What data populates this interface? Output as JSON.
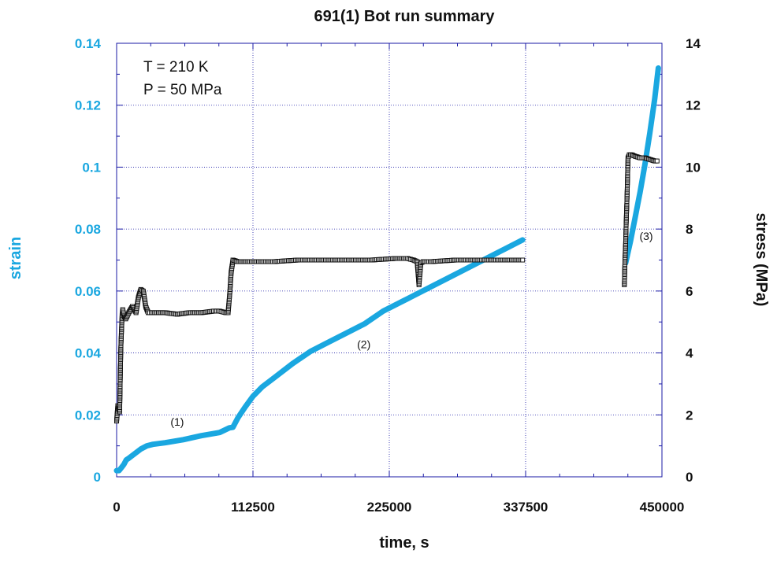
{
  "chart_data": {
    "type": "line",
    "title": "691(1) Bot run summary",
    "xlabel": "time, s",
    "ylabel_left": "strain",
    "ylabel_right": "stress (MPa)",
    "xlim": [
      0,
      450000
    ],
    "ylim_left": [
      0,
      0.14
    ],
    "ylim_right": [
      0,
      14
    ],
    "x_ticks": [
      0,
      112500,
      225000,
      337500,
      450000
    ],
    "x_tick_labels": [
      "0",
      "112500",
      "225000",
      "337500",
      "450000"
    ],
    "y_left_ticks": [
      0,
      0.02,
      0.04,
      0.06,
      0.08,
      0.1,
      0.12,
      0.14
    ],
    "y_left_tick_labels": [
      "0",
      "0.02",
      "0.04",
      "0.06",
      "0.08",
      "0.1",
      "0.12",
      "0.14"
    ],
    "y_right_ticks": [
      0,
      2,
      4,
      6,
      8,
      10,
      12,
      14
    ],
    "y_right_tick_labels": [
      "0",
      "2",
      "4",
      "6",
      "8",
      "10",
      "12",
      "14"
    ],
    "grid": true,
    "annotations": [
      "T = 210 K",
      "P = 50 MPa"
    ],
    "segment_labels": [
      {
        "text": "(1)",
        "x": 50000,
        "y_strain": 0.0165
      },
      {
        "text": "(2)",
        "x": 204000,
        "y_strain": 0.0415
      },
      {
        "text": "(3)",
        "x": 437000,
        "y_strain": 0.0765
      }
    ],
    "colors": {
      "strain": "#1aa7e0",
      "stress": "#111111",
      "grid": "#1a1aa6",
      "axis": "#1a1aa6"
    },
    "series": [
      {
        "name": "strain",
        "axis": "left",
        "color": "#1aa7e0",
        "segments": [
          {
            "x": [
              0,
              2000,
              4000,
              6000,
              8000,
              10000,
              15000,
              20000,
              25000,
              30000,
              40000,
              55000,
              70000,
              85000,
              93000,
              96000,
              100000,
              106000,
              112500,
              120000,
              130000,
              145000,
              160000,
              175000,
              190000,
              205000,
              220000,
              240000,
              260000,
              280000,
              300000,
              320000,
              335000
            ],
            "y": [
              0.002,
              0.002,
              0.003,
              0.004,
              0.0055,
              0.006,
              0.0075,
              0.009,
              0.01,
              0.0105,
              0.011,
              0.012,
              0.0133,
              0.0143,
              0.0158,
              0.016,
              0.019,
              0.0225,
              0.026,
              0.029,
              0.032,
              0.0365,
              0.0405,
              0.0435,
              0.0465,
              0.0495,
              0.0535,
              0.0575,
              0.0615,
              0.0655,
              0.0695,
              0.0735,
              0.0765
            ]
          },
          {
            "x": [
              420000,
              424000,
              428000,
              432000,
              436000,
              440000,
              444000,
              447000
            ],
            "y": [
              0.069,
              0.076,
              0.084,
              0.092,
              0.101,
              0.111,
              0.122,
              0.132
            ]
          }
        ]
      },
      {
        "name": "stress",
        "axis": "right",
        "color": "#111111",
        "segments": [
          {
            "x": [
              0,
              1000,
              2500,
              3500,
              4500,
              5000,
              6000,
              7500,
              10000,
              13000,
              16000,
              18000,
              20000,
              22000,
              24000,
              26000,
              30000,
              40000,
              50000,
              60000,
              70000,
              80000,
              85000,
              90000,
              92000,
              93500,
              94500,
              96000,
              100000,
              110000,
              130000,
              150000,
              170000,
              190000,
              210000,
              230000,
              240000,
              245000,
              248000,
              249500,
              251000,
              253000,
              260000,
              280000,
              300000,
              320000,
              335000
            ],
            "y": [
              1.8,
              2.3,
              2.1,
              4.2,
              5.2,
              5.4,
              5.2,
              5.1,
              5.3,
              5.5,
              5.3,
              5.8,
              6.05,
              6.0,
              5.5,
              5.3,
              5.3,
              5.3,
              5.25,
              5.3,
              5.3,
              5.35,
              5.35,
              5.3,
              5.3,
              6.0,
              6.6,
              7.0,
              6.95,
              6.95,
              6.95,
              7.0,
              7.0,
              7.0,
              7.0,
              7.05,
              7.05,
              7.0,
              6.95,
              6.2,
              6.9,
              6.95,
              6.95,
              7.0,
              7.0,
              7.0,
              7.0
            ]
          },
          {
            "x": [
              419000,
              419500,
              420000,
              420500,
              421000,
              421500,
              422000,
              423000,
              425000,
              428000,
              432000,
              436000,
              440000,
              444000,
              446000
            ],
            "y": [
              6.2,
              7.0,
              7.5,
              8.2,
              8.8,
              9.5,
              10.3,
              10.4,
              10.4,
              10.35,
              10.3,
              10.3,
              10.25,
              10.2,
              10.2
            ]
          }
        ]
      }
    ]
  }
}
